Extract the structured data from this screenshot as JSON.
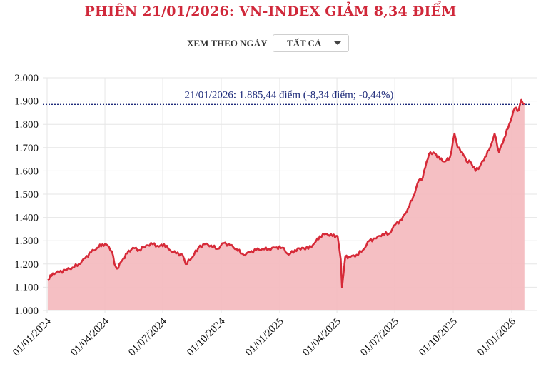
{
  "header": {
    "title": "PHIÊN 21/01/2026: VN-INDEX GIẢM 8,34 ĐIỂM"
  },
  "filter": {
    "label": "XEM THEO NGÀY",
    "selected": "TẤT CẢ"
  },
  "colors": {
    "title": "#d0283a",
    "line": "#d62a38",
    "area": "#f4bcc0",
    "reference_line": "#1d2a7a",
    "grid": "#e6e6e6"
  },
  "chart_data": {
    "type": "area",
    "title": "PHIÊN 21/01/2026: VN-INDEX GIẢM 8,34 ĐIỂM",
    "xlabel": "",
    "ylabel": "",
    "ylim": [
      1000,
      2000
    ],
    "yticks": [
      "1.000",
      "1.100",
      "1.200",
      "1.300",
      "1.400",
      "1.500",
      "1.600",
      "1.700",
      "1.800",
      "1.900",
      "2.000"
    ],
    "ytick_values": [
      1000,
      1100,
      1200,
      1300,
      1400,
      1500,
      1600,
      1700,
      1800,
      1900,
      2000
    ],
    "xticks": [
      "01/01/2024",
      "01/04/2024",
      "01/07/2024",
      "01/10/2024",
      "01/01/2025",
      "01/04/2025",
      "01/07/2025",
      "01/10/2025",
      "01/01/2026"
    ],
    "grid": true,
    "series": [
      {
        "name": "VN-Index",
        "x": [
          "2024-01-02",
          "2024-01-10",
          "2024-01-20",
          "2024-02-01",
          "2024-02-10",
          "2024-02-20",
          "2024-03-01",
          "2024-03-10",
          "2024-03-20",
          "2024-03-28",
          "2024-04-05",
          "2024-04-12",
          "2024-04-16",
          "2024-04-20",
          "2024-04-28",
          "2024-05-06",
          "2024-05-15",
          "2024-05-25",
          "2024-06-05",
          "2024-06-15",
          "2024-06-25",
          "2024-07-03",
          "2024-07-12",
          "2024-07-22",
          "2024-08-01",
          "2024-08-06",
          "2024-08-15",
          "2024-08-26",
          "2024-09-05",
          "2024-09-15",
          "2024-09-25",
          "2024-10-05",
          "2024-10-15",
          "2024-10-25",
          "2024-11-05",
          "2024-11-15",
          "2024-11-25",
          "2024-12-05",
          "2024-12-15",
          "2024-12-25",
          "2025-01-05",
          "2025-01-15",
          "2025-01-25",
          "2025-02-05",
          "2025-02-15",
          "2025-02-25",
          "2025-03-05",
          "2025-03-15",
          "2025-03-25",
          "2025-04-02",
          "2025-04-07",
          "2025-04-09",
          "2025-04-14",
          "2025-04-22",
          "2025-05-02",
          "2025-05-12",
          "2025-05-22",
          "2025-06-02",
          "2025-06-12",
          "2025-06-22",
          "2025-07-02",
          "2025-07-12",
          "2025-07-22",
          "2025-07-30",
          "2025-08-08",
          "2025-08-14",
          "2025-08-20",
          "2025-08-26",
          "2025-09-02",
          "2025-09-10",
          "2025-09-18",
          "2025-09-26",
          "2025-10-03",
          "2025-10-08",
          "2025-10-15",
          "2025-10-22",
          "2025-10-28",
          "2025-11-05",
          "2025-11-12",
          "2025-11-20",
          "2025-11-28",
          "2025-12-05",
          "2025-12-12",
          "2025-12-20",
          "2025-12-28",
          "2026-01-06",
          "2026-01-12",
          "2026-01-16",
          "2026-01-21"
        ],
        "values": [
          1130,
          1160,
          1165,
          1175,
          1185,
          1200,
          1225,
          1250,
          1270,
          1285,
          1280,
          1255,
          1200,
          1180,
          1215,
          1245,
          1270,
          1260,
          1280,
          1285,
          1275,
          1285,
          1260,
          1245,
          1240,
          1200,
          1225,
          1270,
          1285,
          1280,
          1265,
          1290,
          1280,
          1265,
          1240,
          1250,
          1260,
          1265,
          1265,
          1270,
          1270,
          1240,
          1260,
          1270,
          1265,
          1290,
          1320,
          1330,
          1320,
          1320,
          1220,
          1100,
          1230,
          1230,
          1240,
          1260,
          1300,
          1310,
          1330,
          1330,
          1370,
          1390,
          1440,
          1490,
          1560,
          1570,
          1640,
          1680,
          1675,
          1650,
          1640,
          1660,
          1760,
          1700,
          1680,
          1640,
          1640,
          1600,
          1620,
          1660,
          1700,
          1760,
          1680,
          1740,
          1800,
          1870,
          1860,
          1905,
          1885.44
        ]
      }
    ],
    "annotations": [
      {
        "text": "21/01/2026: 1.885,44 điểm (-8,34 điểm; -0,44%)",
        "reference_value": 1885.44,
        "style": "dotted horizontal line"
      }
    ],
    "latest": {
      "date": "21/01/2026",
      "value": "1.885,44",
      "change": "-8,34",
      "change_pct": "-0,44%"
    }
  }
}
